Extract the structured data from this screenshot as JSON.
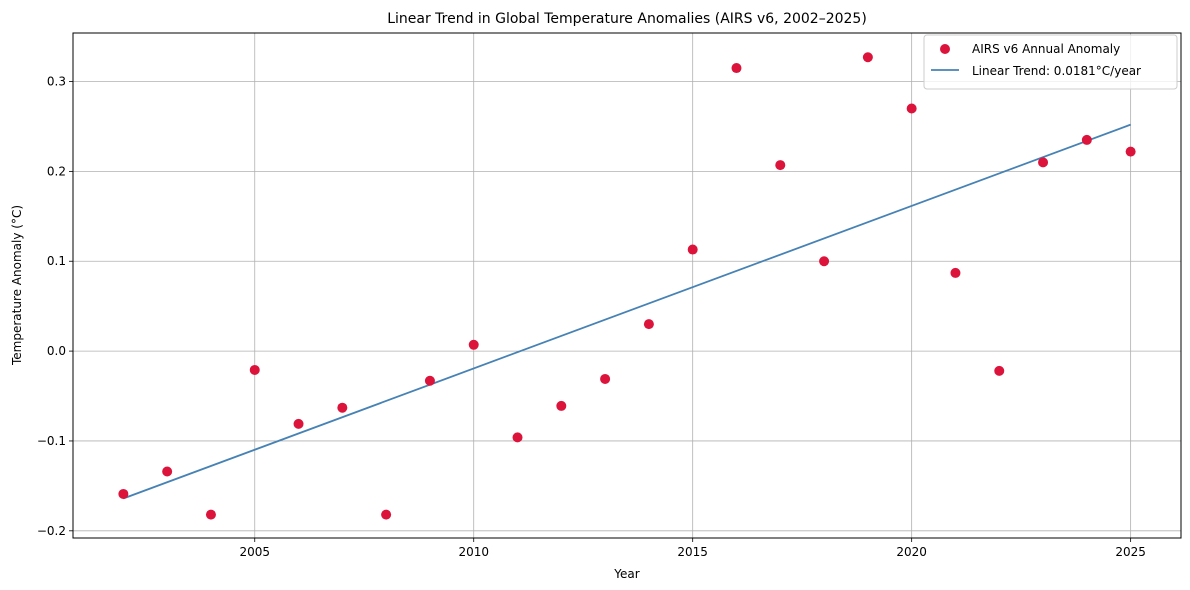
{
  "chart_data": {
    "type": "scatter",
    "title": "Linear Trend in Global Temperature Anomalies (AIRS v6, 2002–2025)",
    "xlabel": "Year",
    "ylabel": "Temperature Anomaly (°C)",
    "xlim": [
      2000.85,
      2026.15
    ],
    "ylim": [
      -0.208,
      0.354
    ],
    "xticks": [
      2005,
      2010,
      2015,
      2020,
      2025
    ],
    "yticks": [
      -0.2,
      -0.1,
      0.0,
      0.1,
      0.2,
      0.3
    ],
    "xtick_labels": [
      "2005",
      "2010",
      "2015",
      "2020",
      "2025"
    ],
    "ytick_labels": [
      "−0.2",
      "−0.1",
      "0.0",
      "0.1",
      "0.2",
      "0.3"
    ],
    "grid": true,
    "legend": "top-right",
    "series": [
      {
        "name": "AIRS v6 Annual Anomaly",
        "kind": "scatter",
        "color": "#dc143c",
        "x": [
          2002,
          2003,
          2004,
          2005,
          2006,
          2007,
          2008,
          2009,
          2010,
          2011,
          2012,
          2013,
          2014,
          2015,
          2016,
          2017,
          2018,
          2019,
          2020,
          2021,
          2022,
          2023,
          2024,
          2025
        ],
        "y": [
          -0.159,
          -0.134,
          -0.182,
          -0.021,
          -0.081,
          -0.063,
          -0.182,
          -0.033,
          0.007,
          -0.096,
          -0.061,
          -0.031,
          0.03,
          0.113,
          0.315,
          0.207,
          0.1,
          0.327,
          0.27,
          0.087,
          -0.022,
          0.21,
          0.235,
          0.222
        ]
      },
      {
        "name": "Linear Trend: 0.0181°C/year",
        "kind": "line",
        "color": "#4682b4",
        "x": [
          2002,
          2025
        ],
        "y": [
          -0.164,
          0.252
        ]
      }
    ]
  }
}
